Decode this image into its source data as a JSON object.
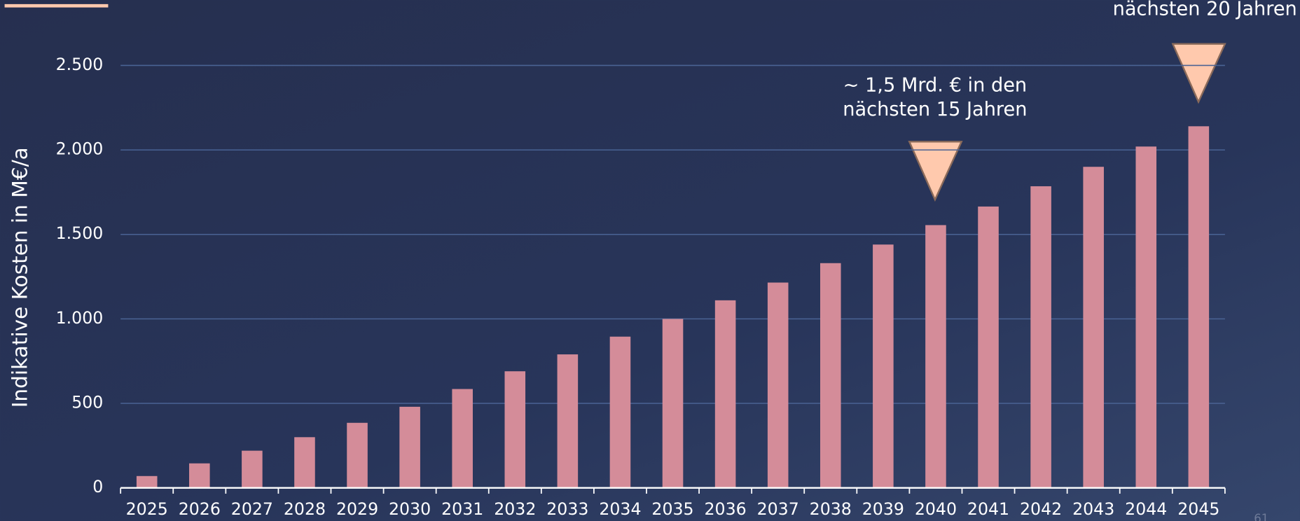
{
  "chart_data": {
    "type": "bar",
    "y_axis_label": "Indikative Kosten in M€/a",
    "categories": [
      "2025",
      "2026",
      "2027",
      "2028",
      "2029",
      "2030",
      "2031",
      "2032",
      "2033",
      "2034",
      "2035",
      "2036",
      "2037",
      "2038",
      "2039",
      "2040",
      "2041",
      "2042",
      "2043",
      "2044",
      "2045"
    ],
    "values": [
      70,
      145,
      220,
      300,
      385,
      480,
      585,
      690,
      790,
      895,
      1000,
      1110,
      1215,
      1330,
      1440,
      1555,
      1665,
      1785,
      1900,
      2020,
      2140
    ],
    "color": "#d48c99",
    "ylim": [
      0,
      2500
    ],
    "yticks": [
      0,
      500,
      {
        "value": 1000,
        "label": "1.000"
      },
      {
        "value": 1500,
        "label": "1.500"
      },
      {
        "value": 2000,
        "label": "2.000"
      },
      {
        "value": 2500,
        "label": "2.500"
      }
    ],
    "grid": true,
    "annotations": [
      {
        "lines": [
          "~ 1,5 Mrd. € in den",
          "nächsten 15 Jahren"
        ]
      },
      {
        "lines": [
          "nächsten 20 Jahren"
        ]
      }
    ],
    "page_number": "61"
  }
}
